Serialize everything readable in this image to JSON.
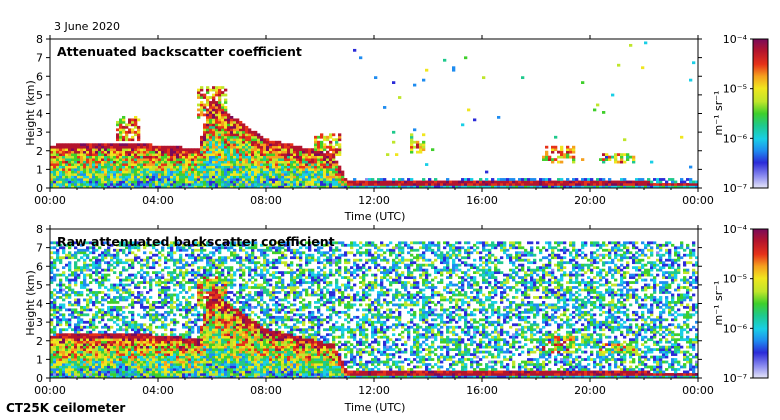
{
  "date_label": "3 June 2020",
  "instrument_label": "CT25K ceilometer",
  "colors": {
    "background_line": "#cc2222",
    "ramp": [
      "#e6e6f8",
      "#8c8cf0",
      "#2b2bd8",
      "#1e8cf0",
      "#19cfe6",
      "#1fc98c",
      "#3fcf2b",
      "#bfe62b",
      "#f0e61e",
      "#f5a01e",
      "#e63219",
      "#b4142d",
      "#7a0a5a"
    ]
  },
  "chart_data": [
    {
      "type": "heatmap",
      "title": "Attenuated backscatter coefficient",
      "xlabel": "Time (UTC)",
      "ylabel": "Height (km)",
      "xticks": [
        "00:00",
        "04:00",
        "08:00",
        "12:00",
        "16:00",
        "20:00",
        "00:00"
      ],
      "yticks": [
        "0",
        "1",
        "2",
        "3",
        "4",
        "5",
        "6",
        "7",
        "8"
      ],
      "xlim_hours": [
        0,
        24
      ],
      "ylim_km": [
        0,
        8
      ],
      "colorbar": {
        "unit": "m⁻¹ sr⁻¹",
        "ticks": [
          "10⁻⁷",
          "10⁻⁶",
          "10⁻⁵",
          "10⁻⁴"
        ],
        "range_log10": [
          -7,
          -4
        ],
        "scale": "log"
      },
      "noise_level": 0.0,
      "features": {
        "boundary_layer_top_km": [
          [
            0,
            2.2
          ],
          [
            2,
            2.3
          ],
          [
            4,
            2.2
          ],
          [
            5.5,
            2.0
          ],
          [
            6,
            4.9
          ],
          [
            6.5,
            4.0
          ],
          [
            8,
            2.5
          ],
          [
            9,
            2.2
          ],
          [
            10.5,
            1.7
          ],
          [
            11,
            0.3
          ],
          [
            24,
            0.2
          ]
        ],
        "cloud_patches": [
          [
            6.0,
            4.6,
            0.6,
            0.9
          ],
          [
            2.9,
            3.2,
            0.4,
            0.7
          ],
          [
            10.3,
            2.3,
            0.5,
            0.6
          ],
          [
            13.6,
            2.4,
            0.3,
            0.5
          ],
          [
            18.8,
            1.8,
            0.6,
            0.5
          ],
          [
            21.0,
            1.6,
            0.7,
            0.3
          ]
        ]
      }
    },
    {
      "type": "heatmap",
      "title": "Raw attenuated backscatter coefficient",
      "xlabel": "Time (UTC)",
      "ylabel": "Height (km)",
      "xticks": [
        "00:00",
        "04:00",
        "08:00",
        "12:00",
        "16:00",
        "20:00",
        "00:00"
      ],
      "yticks": [
        "0",
        "1",
        "2",
        "3",
        "4",
        "5",
        "6",
        "7",
        "8"
      ],
      "xlim_hours": [
        0,
        24
      ],
      "ylim_km": [
        0,
        8
      ],
      "colorbar": {
        "unit": "m⁻¹ sr⁻¹",
        "ticks": [
          "10⁻⁷",
          "10⁻⁶",
          "10⁻⁵",
          "10⁻⁴"
        ],
        "range_log10": [
          -7,
          -4
        ],
        "scale": "log"
      },
      "noise_level": 1.0,
      "features": {
        "boundary_layer_top_km": [
          [
            0,
            2.2
          ],
          [
            2,
            2.3
          ],
          [
            4,
            2.2
          ],
          [
            5.5,
            2.0
          ],
          [
            6,
            4.9
          ],
          [
            6.5,
            4.0
          ],
          [
            8,
            2.5
          ],
          [
            9,
            2.2
          ],
          [
            10.5,
            1.7
          ],
          [
            11,
            0.3
          ],
          [
            24,
            0.2
          ]
        ],
        "cloud_patches": [
          [
            6.0,
            4.6,
            0.6,
            0.9
          ],
          [
            18.8,
            1.8,
            0.6,
            0.5
          ],
          [
            21.0,
            1.6,
            0.7,
            0.3
          ]
        ]
      }
    }
  ]
}
